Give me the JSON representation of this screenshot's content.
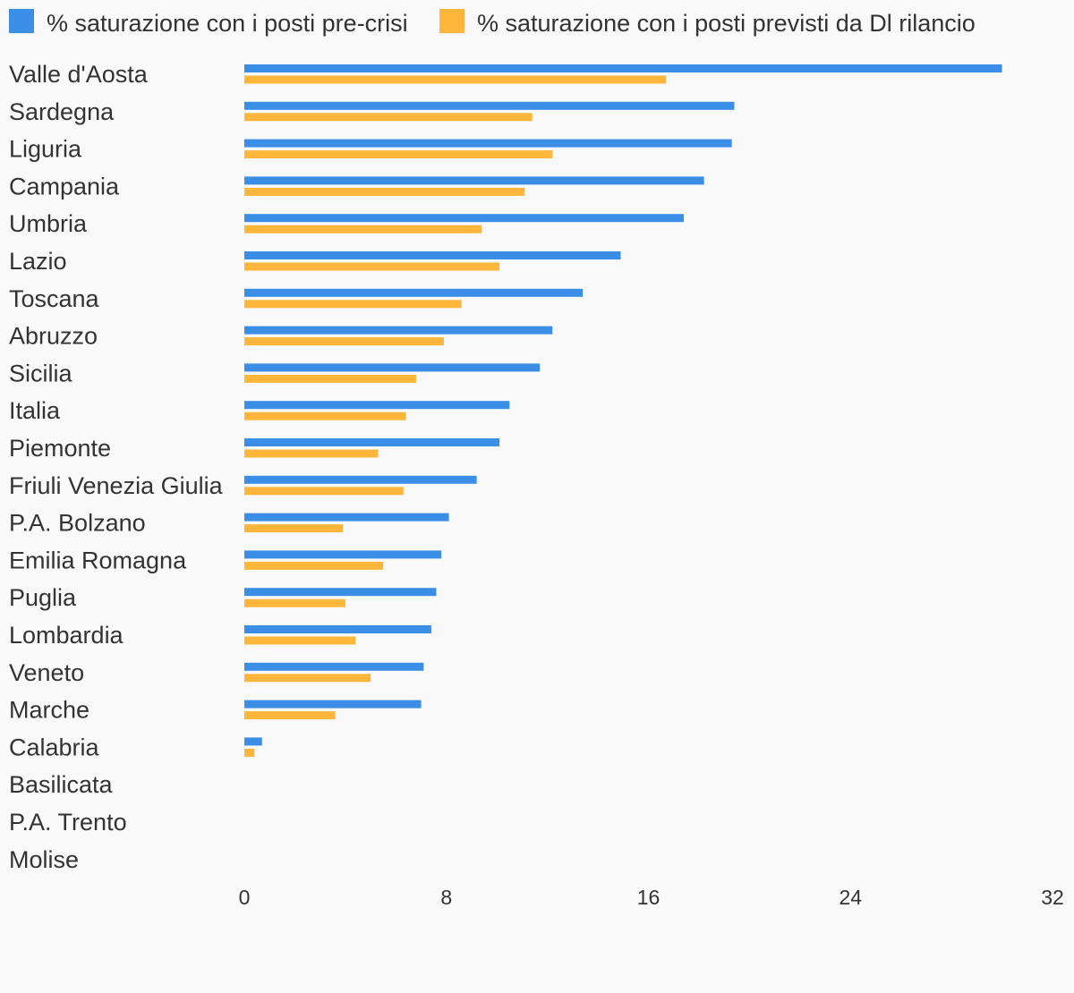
{
  "chart_data": {
    "type": "bar",
    "orientation": "horizontal",
    "categories": [
      "Valle d'Aosta",
      "Sardegna",
      "Liguria",
      "Campania",
      "Umbria",
      "Lazio",
      "Toscana",
      "Abruzzo",
      "Sicilia",
      "Italia",
      "Piemonte",
      "Friuli Venezia Giulia",
      "P.A. Bolzano",
      "Emilia Romagna",
      "Puglia",
      "Lombardia",
      "Veneto",
      "Marche",
      "Calabria",
      "Basilicata",
      "P.A. Trento",
      "Molise"
    ],
    "series": [
      {
        "name": "% saturazione con i posti pre-crisi",
        "color": "#3a8ee6",
        "values": [
          30,
          19.4,
          19.3,
          18.2,
          17.4,
          14.9,
          13.4,
          12.2,
          11.7,
          10.5,
          10.1,
          9.2,
          8.1,
          7.8,
          7.6,
          7.4,
          7.1,
          7.0,
          0.7,
          0,
          0,
          0
        ]
      },
      {
        "name": "% saturazione con i posti previsti da Dl rilancio",
        "color": "#ffb63a",
        "values": [
          16.7,
          11.4,
          12.2,
          11.1,
          9.4,
          10.1,
          8.6,
          7.9,
          6.8,
          6.4,
          5.3,
          6.3,
          3.9,
          5.5,
          4.0,
          4.4,
          5.0,
          3.6,
          0.4,
          0,
          0,
          0
        ]
      }
    ],
    "xticks": [
      "0",
      "8",
      "16",
      "24",
      "32"
    ],
    "xlim": [
      0,
      32
    ],
    "legend": "top-left",
    "grid": false
  }
}
